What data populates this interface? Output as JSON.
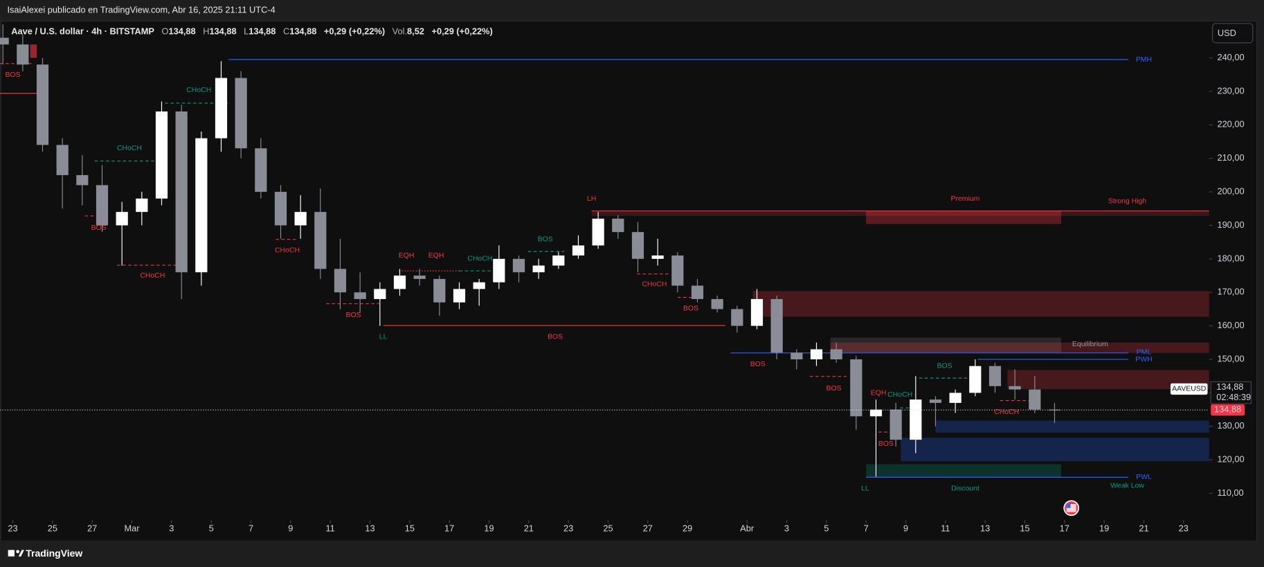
{
  "header": {
    "title": "IsaiAlexei publicado en TradingView.com, Abr 16, 2025 21:11 UTC-4"
  },
  "footer": {
    "brand": "TradingView"
  },
  "toolbar": {
    "currency": "USD"
  },
  "legend": {
    "symbol": "Aave / U.S. dollar · 4h · BITSTAMP",
    "ohlc": [
      {
        "key": "O",
        "value": "134,88"
      },
      {
        "key": "H",
        "value": "134,88"
      },
      {
        "key": "L",
        "value": "134,88"
      },
      {
        "key": "C",
        "value": "134,88"
      }
    ],
    "change": "+0,29 (+0,22%)",
    "volume_key": "Vol.",
    "volume": "8,52",
    "volume_change": "+0,29 (+0,22%)"
  },
  "chart_data": {
    "type": "candlestick",
    "x": [
      "2025-02-22",
      "2025-02-23",
      "2025-02-24",
      "2025-02-25",
      "2025-02-26",
      "2025-02-27",
      "2025-02-28",
      "2025-03-01",
      "2025-03-02",
      "2025-03-03",
      "2025-03-04",
      "2025-03-05",
      "2025-03-06",
      "2025-03-07",
      "2025-03-08",
      "2025-03-09",
      "2025-03-10",
      "2025-03-11",
      "2025-03-12",
      "2025-03-13",
      "2025-03-14",
      "2025-03-15",
      "2025-03-16",
      "2025-03-17",
      "2025-03-18",
      "2025-03-19",
      "2025-03-20",
      "2025-03-21",
      "2025-03-22",
      "2025-03-23",
      "2025-03-24",
      "2025-03-25",
      "2025-03-26",
      "2025-03-27",
      "2025-03-28",
      "2025-03-29",
      "2025-03-30",
      "2025-03-31",
      "2025-04-01",
      "2025-04-02",
      "2025-04-03",
      "2025-04-04",
      "2025-04-05",
      "2025-04-06",
      "2025-04-07",
      "2025-04-08",
      "2025-04-09",
      "2025-04-10",
      "2025-04-11",
      "2025-04-12",
      "2025-04-13",
      "2025-04-14",
      "2025-04-15",
      "2025-04-16"
    ],
    "open": [
      246,
      244,
      238,
      214,
      205,
      202,
      190,
      194,
      198,
      224,
      176,
      216,
      234,
      213,
      200,
      190,
      194,
      177,
      170,
      168,
      171,
      175,
      174,
      167,
      171,
      173,
      180,
      176,
      178,
      181,
      184,
      192,
      188,
      180,
      181,
      172,
      168,
      165,
      160,
      168,
      152,
      150,
      153,
      150,
      133,
      135,
      126,
      138,
      137,
      140,
      148,
      142,
      141,
      135
    ],
    "high": [
      250,
      247,
      240,
      216,
      211,
      208,
      197,
      200,
      227,
      226,
      218,
      239,
      236,
      216,
      202,
      199,
      201,
      186,
      176,
      173,
      177,
      177,
      175,
      173,
      174,
      184,
      181,
      180,
      182,
      187,
      194,
      193,
      191,
      186,
      182,
      174,
      169,
      166,
      171,
      169,
      153,
      155,
      155,
      151,
      138,
      137,
      145,
      139,
      141,
      150,
      149,
      147,
      145,
      137
    ],
    "low": [
      238,
      236,
      212,
      195,
      196,
      188,
      178,
      190,
      196,
      168,
      172,
      212,
      210,
      198,
      186,
      186,
      174,
      165,
      164,
      160,
      169,
      172,
      163,
      165,
      166,
      171,
      173,
      174,
      177,
      180,
      183,
      186,
      176,
      178,
      170,
      167,
      164,
      158,
      159,
      150,
      147,
      148,
      149,
      129,
      115,
      124,
      122,
      130,
      134,
      139,
      140,
      138,
      134,
      131
    ],
    "close": [
      244,
      238,
      214,
      205,
      202,
      190,
      194,
      198,
      224,
      176,
      216,
      234,
      213,
      200,
      190,
      194,
      177,
      170,
      168,
      171,
      175,
      174,
      167,
      171,
      173,
      180,
      176,
      178,
      181,
      184,
      192,
      188,
      180,
      181,
      172,
      168,
      165,
      160,
      168,
      152,
      150,
      153,
      150,
      133,
      135,
      126,
      138,
      137,
      140,
      148,
      142,
      141,
      135,
      134.88
    ],
    "up_color": "#ffffff",
    "down_color": "#8a8d96",
    "symbol": "AAVEUSD",
    "last": 134.88,
    "last_label": "134,88",
    "countdown": "02:48:39",
    "last_color": "#f23645",
    "xlim": [
      "2025-02-22T08:30",
      "2025-04-24T07:00"
    ],
    "xticks": [
      {
        "value": "2025-02-23",
        "label": "23"
      },
      {
        "value": "2025-02-25",
        "label": "25"
      },
      {
        "value": "2025-02-27",
        "label": "27"
      },
      {
        "value": "2025-03-01",
        "label": "Mar"
      },
      {
        "value": "2025-03-03",
        "label": "3"
      },
      {
        "value": "2025-03-05",
        "label": "5"
      },
      {
        "value": "2025-03-07",
        "label": "7"
      },
      {
        "value": "2025-03-09",
        "label": "9"
      },
      {
        "value": "2025-03-11",
        "label": "11"
      },
      {
        "value": "2025-03-13",
        "label": "13"
      },
      {
        "value": "2025-03-15",
        "label": "15"
      },
      {
        "value": "2025-03-17",
        "label": "17"
      },
      {
        "value": "2025-03-19",
        "label": "19"
      },
      {
        "value": "2025-03-21",
        "label": "21"
      },
      {
        "value": "2025-03-23",
        "label": "23"
      },
      {
        "value": "2025-03-25",
        "label": "25"
      },
      {
        "value": "2025-03-27",
        "label": "27"
      },
      {
        "value": "2025-03-29",
        "label": "29"
      },
      {
        "value": "2025-04-01",
        "label": "Abr"
      },
      {
        "value": "2025-04-03",
        "label": "3"
      },
      {
        "value": "2025-04-05",
        "label": "5"
      },
      {
        "value": "2025-04-07",
        "label": "7"
      },
      {
        "value": "2025-04-09",
        "label": "9"
      },
      {
        "value": "2025-04-11",
        "label": "11"
      },
      {
        "value": "2025-04-13",
        "label": "13"
      },
      {
        "value": "2025-04-15",
        "label": "15"
      },
      {
        "value": "2025-04-17",
        "label": "17"
      },
      {
        "value": "2025-04-19",
        "label": "19"
      },
      {
        "value": "2025-04-21",
        "label": "21"
      },
      {
        "value": "2025-04-23",
        "label": "23"
      }
    ],
    "ylim": [
      102,
      250.5
    ],
    "yticks": [
      {
        "value": 110,
        "label": "110,00"
      },
      {
        "value": 120,
        "label": "120,00"
      },
      {
        "value": 130,
        "label": "130,00"
      },
      {
        "value": 140,
        "label": "140,00"
      },
      {
        "value": 150,
        "label": "150,00"
      },
      {
        "value": 160,
        "label": "160,00"
      },
      {
        "value": 170,
        "label": "170,00"
      },
      {
        "value": 180,
        "label": "180,00"
      },
      {
        "value": 190,
        "label": "190,00"
      },
      {
        "value": 200,
        "label": "200,00"
      },
      {
        "value": 210,
        "label": "210,00"
      },
      {
        "value": 220,
        "label": "220,00"
      },
      {
        "value": 230,
        "label": "230,00"
      },
      {
        "value": 240,
        "label": "240,00"
      }
    ],
    "grid": false,
    "zones": [
      {
        "top": 194.3,
        "bottom": 192.8,
        "from": "2025-03-24T04:00",
        "to": "2025-04-24T07:00",
        "color": "#f2364533"
      },
      {
        "top": 194.3,
        "bottom": 190.4,
        "from": "2025-04-07T00:00",
        "to": "2025-04-16T20:00",
        "color": "#f2364555"
      },
      {
        "top": 170.4,
        "bottom": 162.7,
        "from": "2025-04-01T07:00",
        "to": "2025-04-24T07:00",
        "color": "#f2364540"
      },
      {
        "top": 156.5,
        "bottom": 152.1,
        "from": "2025-04-05T05:00",
        "to": "2025-04-16T20:00",
        "color": "#78787840"
      },
      {
        "top": 155.0,
        "bottom": 151.9,
        "from": "2025-04-05T05:00",
        "to": "2025-04-24T07:00",
        "color": "#f2364540"
      },
      {
        "top": 146.8,
        "bottom": 141.1,
        "from": "2025-04-14T03:00",
        "to": "2025-04-24T07:00",
        "color": "#f2364540"
      },
      {
        "top": 131.7,
        "bottom": 128.1,
        "from": "2025-04-10T12:00",
        "to": "2025-04-24T07:00",
        "color": "#2962ff40"
      },
      {
        "top": 126.6,
        "bottom": 119.6,
        "from": "2025-04-08T18:00",
        "to": "2025-04-24T07:00",
        "color": "#2962ff40"
      },
      {
        "top": 118.7,
        "bottom": 114.8,
        "from": "2025-04-07T00:00",
        "to": "2025-04-16T20:00",
        "color": "#08998140"
      },
      {
        "top": 244,
        "bottom": 240,
        "from": "2025-02-23T21:00",
        "to": "2025-02-24T05:00",
        "color": "#f2364599"
      },
      {
        "top": 226.5,
        "bottom": 217.6,
        "from": "2025-03-06T08:00",
        "to": "2025-03-06T18:00",
        "color": "#f2364599"
      }
    ],
    "levels": [
      {
        "price": 238.3,
        "from": "2025-02-22T08:30",
        "to": "2025-02-23T23:00",
        "color": "#f23645",
        "style": "dashed"
      },
      {
        "price": 229.4,
        "from": "2025-02-22T08:30",
        "to": "2025-02-24T09:00",
        "color": "#f23645",
        "style": "solid"
      },
      {
        "price": 226.5,
        "from": "2025-03-02T16:00",
        "to": "2025-03-05T20:00",
        "color": "#089981",
        "style": "dashed"
      },
      {
        "price": 209.2,
        "from": "2025-02-27T03:00",
        "to": "2025-03-02T11:00",
        "color": "#089981",
        "style": "dashed"
      },
      {
        "price": 192.8,
        "from": "2025-02-26T15:00",
        "to": "2025-02-27T18:00",
        "color": "#f23645",
        "style": "dashed"
      },
      {
        "price": 178.1,
        "from": "2025-02-28T06:00",
        "to": "2025-03-03T19:00",
        "color": "#f23645",
        "style": "dashed"
      },
      {
        "price": 185.8,
        "from": "2025-03-08T06:00",
        "to": "2025-03-09T09:00",
        "color": "#f23645",
        "style": "dashed"
      },
      {
        "price": 166.6,
        "from": "2025-03-10T19:00",
        "to": "2025-03-13T11:00",
        "color": "#f23645",
        "style": "dashed"
      },
      {
        "price": 160.1,
        "from": "2025-03-13T16:00",
        "to": "2025-03-30T22:00",
        "color": "#f23645",
        "style": "solid"
      },
      {
        "price": 176.4,
        "from": "2025-03-14T11:00",
        "to": "2025-03-17T12:00",
        "color": "#f23645",
        "style": "dotted"
      },
      {
        "price": 176.4,
        "from": "2025-03-17T12:00",
        "to": "2025-03-19T05:00",
        "color": "#089981",
        "style": "dashed"
      },
      {
        "price": 182.2,
        "from": "2025-03-20T23:00",
        "to": "2025-03-22T19:00",
        "color": "#089981",
        "style": "dashed"
      },
      {
        "price": 194.3,
        "from": "2025-03-24T04:00",
        "to": "2025-04-24T07:00",
        "color": "#f23645",
        "style": "solid"
      },
      {
        "price": 175.5,
        "from": "2025-03-26T11:00",
        "to": "2025-03-28T02:00",
        "color": "#f23645",
        "style": "dashed"
      },
      {
        "price": 168.5,
        "from": "2025-03-28T12:00",
        "to": "2025-03-29T17:00",
        "color": "#f23645",
        "style": "dashed"
      },
      {
        "price": 151.9,
        "from": "2025-03-31T04:00",
        "to": "2025-04-20T05:00",
        "color": "#2962ff",
        "style": "solid"
      },
      {
        "price": 144.9,
        "from": "2025-04-04T04:00",
        "to": "2025-04-06T00:00",
        "color": "#f23645",
        "style": "dashed"
      },
      {
        "price": 144.4,
        "from": "2025-04-09T16:00",
        "to": "2025-04-12T02:00",
        "color": "#089981",
        "style": "dashed"
      },
      {
        "price": 128.3,
        "from": "2025-04-07T15:00",
        "to": "2025-04-08T11:00",
        "color": "#f23645",
        "style": "dashed"
      },
      {
        "price": 150.0,
        "from": "2025-04-12T15:00",
        "to": "2025-04-20T05:00",
        "color": "#2962ff",
        "style": "solid"
      },
      {
        "price": 137.7,
        "from": "2025-04-13T18:00",
        "to": "2025-04-15T08:00",
        "color": "#f23645",
        "style": "dashed"
      },
      {
        "price": 114.8,
        "from": "2025-04-07T00:00",
        "to": "2025-04-20T05:00",
        "color": "#2962ff",
        "style": "solid"
      },
      {
        "price": 239.5,
        "from": "2025-03-05T21:00",
        "to": "2025-04-20T05:00",
        "color": "#2962ff",
        "style": "solid"
      },
      {
        "price": 135.5,
        "from": "2025-04-08T17:00",
        "to": "2025-04-09T16:00",
        "color": "#089981",
        "style": "dashed"
      }
    ],
    "labels": [
      {
        "text": "BOS",
        "price": 234.9,
        "time": "2025-02-23T00:00",
        "color": "#f23645"
      },
      {
        "text": "CHoCH",
        "price": 230.4,
        "time": "2025-03-04T09:00",
        "color": "#089981"
      },
      {
        "text": "CHoCH",
        "price": 213,
        "time": "2025-02-28T21:00",
        "color": "#089981"
      },
      {
        "text": "BOS",
        "price": 189.2,
        "time": "2025-02-27T08:00",
        "color": "#f23645"
      },
      {
        "text": "CHoCH",
        "price": 175,
        "time": "2025-03-02T01:00",
        "color": "#f23645"
      },
      {
        "text": "CHoCH",
        "price": 182.5,
        "time": "2025-03-08T20:00",
        "color": "#f23645"
      },
      {
        "text": "BOS",
        "price": 163.2,
        "time": "2025-03-12T04:00",
        "color": "#f23645"
      },
      {
        "text": "BOS",
        "price": 156.7,
        "time": "2025-03-22T08:00",
        "color": "#f23645"
      },
      {
        "text": "LL",
        "price": 156.7,
        "time": "2025-03-13T16:00",
        "color": "#089981"
      },
      {
        "text": "EQH",
        "price": 181,
        "time": "2025-03-14T20:00",
        "color": "#f23645"
      },
      {
        "text": "EQH",
        "price": 181,
        "time": "2025-03-16T08:00",
        "color": "#f23645"
      },
      {
        "text": "CHoCH",
        "price": 180,
        "time": "2025-03-18T13:00",
        "color": "#089981"
      },
      {
        "text": "BOS",
        "price": 185.8,
        "time": "2025-03-21T20:00",
        "color": "#089981"
      },
      {
        "text": "LH",
        "price": 197.9,
        "time": "2025-03-24T04:00",
        "color": "#f23645"
      },
      {
        "text": "Premium",
        "price": 197.9,
        "time": "2025-04-12T00:00",
        "color": "#f23645"
      },
      {
        "text": "Strong High",
        "price": 197.2,
        "time": "2025-04-20T04:00",
        "color": "#f23645"
      },
      {
        "text": "CHoCH",
        "price": 172.4,
        "time": "2025-03-27T08:00",
        "color": "#f23645"
      },
      {
        "text": "BOS",
        "price": 165.1,
        "time": "2025-03-29T04:00",
        "color": "#f23645"
      },
      {
        "text": "BOS",
        "price": 148.5,
        "time": "2025-04-01T13:00",
        "color": "#f23645"
      },
      {
        "text": "BOS",
        "price": 141.3,
        "time": "2025-04-05T09:00",
        "color": "#f23645"
      },
      {
        "text": "EQH",
        "price": 139.9,
        "time": "2025-04-07T15:00",
        "color": "#f23645"
      },
      {
        "text": "CHoCH",
        "price": 139.4,
        "time": "2025-04-08T17:00",
        "color": "#089981"
      },
      {
        "text": "BOS",
        "price": 148,
        "time": "2025-04-10T23:00",
        "color": "#089981"
      },
      {
        "text": "BOS",
        "price": 124.7,
        "time": "2025-04-08T00:00",
        "color": "#f23645"
      },
      {
        "text": "CHoCH",
        "price": 134.3,
        "time": "2025-04-14T02:00",
        "color": "#f23645"
      },
      {
        "text": "LL",
        "price": 111.4,
        "time": "2025-04-06T23:00",
        "color": "#089981"
      },
      {
        "text": "Discount",
        "price": 111.4,
        "time": "2025-04-12T00:00",
        "color": "#089981"
      },
      {
        "text": "Weak Low",
        "price": 112.2,
        "time": "2025-04-20T04:00",
        "color": "#089981"
      },
      {
        "text": "Equilibrium",
        "price": 154.5,
        "time": "2025-04-18T07:00",
        "color": "#9598a1"
      },
      {
        "text": "PMH",
        "price": 239.5,
        "time": "2025-04-21T00:00",
        "color": "#2962ff"
      },
      {
        "text": "PML",
        "price": 152.1,
        "time": "2025-04-21T00:00",
        "color": "#2962ff"
      },
      {
        "text": "PWH",
        "price": 150.0,
        "time": "2025-04-21T00:00",
        "color": "#2962ff"
      },
      {
        "text": "PWL",
        "price": 114.8,
        "time": "2025-04-21T00:00",
        "color": "#2962ff"
      }
    ]
  }
}
